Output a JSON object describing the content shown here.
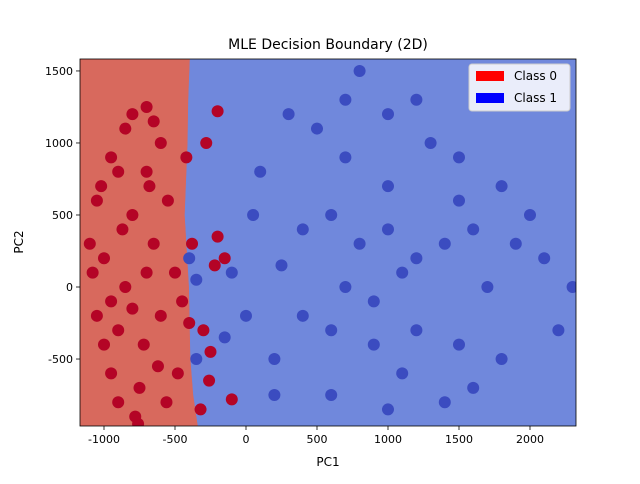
{
  "chart_data": {
    "type": "scatter",
    "title": "MLE Decision Boundary (2D)",
    "x_label": "PC1",
    "y_label": "PC2",
    "xlim": [
      -1169,
      2324
    ],
    "ylim": [
      -965,
      1583
    ],
    "xticks": [
      -1000,
      -500,
      0,
      500,
      1000,
      1500,
      2000
    ],
    "yticks": [
      -500,
      0,
      500,
      1000,
      1500
    ],
    "legend": "upper right",
    "boundary": {
      "x": [
        -394,
        -405,
        -410,
        -420,
        -430,
        -415,
        -400,
        -390,
        -370,
        -338
      ],
      "y": [
        1583,
        1300,
        1000,
        750,
        500,
        250,
        0,
        -500,
        -750,
        -965
      ]
    },
    "series": [
      {
        "name": "Class 0",
        "color": "#b40426",
        "legend_color": "#ff0000",
        "region_color": "#d8695d",
        "x": [
          -1050,
          -1000,
          -950,
          -900,
          -850,
          -800,
          -750,
          -700,
          -650,
          -600,
          -900,
          -1000,
          -1080,
          -850,
          -800,
          -700,
          -600,
          -550,
          -500,
          -450,
          -400,
          -300,
          -250,
          -200,
          -280,
          -150,
          -100,
          -260,
          -320,
          -780,
          -950,
          -1020,
          -870,
          -720,
          -620,
          -560,
          -480,
          -380,
          -420,
          -650,
          -900,
          -1100,
          -950,
          -800,
          -700,
          -1050,
          -760,
          -680,
          -200,
          -220
        ],
        "y": [
          600,
          200,
          900,
          -300,
          1100,
          500,
          -700,
          800,
          300,
          -200,
          -800,
          -400,
          100,
          0,
          1200,
          1250,
          1000,
          600,
          100,
          -100,
          -250,
          -300,
          -450,
          1220,
          1000,
          200,
          -780,
          -650,
          -850,
          -900,
          -600,
          700,
          400,
          -400,
          -550,
          -800,
          -600,
          300,
          900,
          1150,
          800,
          300,
          -100,
          -150,
          100,
          -200,
          -950,
          700,
          350,
          150
        ]
      },
      {
        "name": "Class 1",
        "color": "#3b4cc0",
        "legend_color": "#0000ff",
        "region_color": "#7088dc",
        "x": [
          600,
          800,
          1000,
          1200,
          400,
          900,
          1100,
          700,
          1300,
          500,
          1500,
          1700,
          1900,
          2100,
          2300,
          2200,
          1800,
          1600,
          1400,
          1000,
          600,
          200,
          0,
          -100,
          100,
          300,
          700,
          1000,
          1200,
          1500,
          1800,
          2000,
          1500,
          800,
          -150,
          -350,
          -400,
          50,
          250,
          1100,
          1400,
          900,
          600,
          1200,
          400,
          1600,
          700,
          1000,
          -350,
          200
        ],
        "y": [
          500,
          300,
          700,
          200,
          -200,
          -400,
          -600,
          900,
          1000,
          1100,
          600,
          0,
          300,
          200,
          0,
          -300,
          -500,
          -700,
          -800,
          -850,
          -750,
          -500,
          -200,
          100,
          800,
          1200,
          1300,
          1200,
          1300,
          900,
          700,
          500,
          -400,
          1500,
          -350,
          -500,
          200,
          500,
          150,
          100,
          300,
          -100,
          -300,
          -300,
          400,
          400,
          0,
          400,
          50,
          -750
        ]
      }
    ]
  }
}
